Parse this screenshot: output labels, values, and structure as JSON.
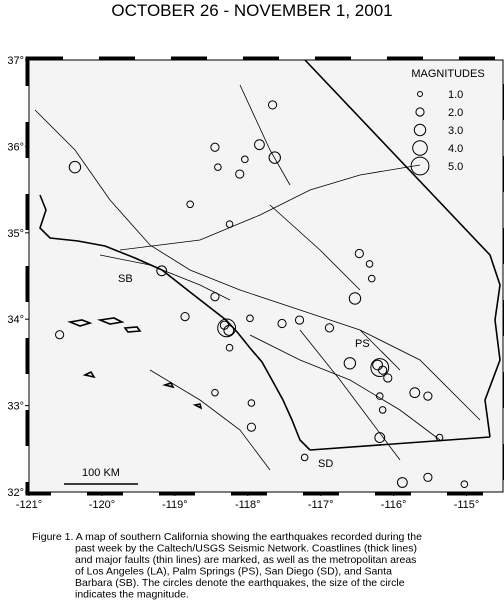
{
  "title": "OCTOBER 26 - NOVEMBER 1, 2001",
  "map": {
    "xlim": [
      -121,
      -114.5
    ],
    "ylim": [
      32,
      37
    ],
    "xticks": [
      {
        "value": -121,
        "label": "-121°"
      },
      {
        "value": -120,
        "label": "-120°"
      },
      {
        "value": -119,
        "label": "-119°"
      },
      {
        "value": -118,
        "label": "-118°"
      },
      {
        "value": -117,
        "label": "-117°"
      },
      {
        "value": -116,
        "label": "-116°"
      },
      {
        "value": -115,
        "label": "-115°"
      }
    ],
    "yticks": [
      {
        "value": 32,
        "label": "32°"
      },
      {
        "value": 33,
        "label": "33°"
      },
      {
        "value": 34,
        "label": "34°"
      },
      {
        "value": 35,
        "label": "35°"
      },
      {
        "value": 36,
        "label": "36°"
      },
      {
        "value": 37,
        "label": "37°"
      }
    ],
    "places": [
      "SB",
      "PS",
      "SD"
    ],
    "scale_bar": "100 KM"
  },
  "legend": {
    "title": "MAGNITUDES",
    "entries": [
      {
        "value": 1,
        "label": "1.0"
      },
      {
        "value": 2,
        "label": "2.0"
      },
      {
        "value": 3,
        "label": "3.0"
      },
      {
        "value": 4,
        "label": "4.0"
      },
      {
        "value": 5,
        "label": "5.0"
      }
    ]
  },
  "quakes": {
    "lon": [
      -120.37,
      -118.45,
      -118.41,
      -118.04,
      -117.84,
      -117.63,
      -118.11,
      -117.66,
      -118.79,
      -118.25,
      -119.18,
      -118.45,
      -118.86,
      -118.29,
      -118.32,
      -118.26,
      -117.97,
      -117.53,
      -117.29,
      -116.88,
      -116.53,
      -116.47,
      -116.33,
      -116.3,
      -116.19,
      -116.22,
      -116.15,
      -116.6,
      -116.08,
      -115.71,
      -115.53,
      -116.19,
      -116.15,
      -117.95,
      -117.95,
      -117.22,
      -116.19,
      -115.88,
      -115.53,
      -115.03,
      -120.58,
      -115.37,
      -118.45,
      -118.25
    ],
    "lat": [
      35.76,
      35.99,
      35.76,
      35.85,
      36.02,
      35.87,
      35.68,
      36.48,
      35.33,
      35.1,
      34.56,
      34.26,
      34.03,
      33.9,
      33.93,
      33.87,
      34.01,
      33.95,
      33.99,
      33.9,
      34.24,
      34.76,
      34.64,
      34.47,
      33.44,
      33.47,
      33.41,
      33.49,
      33.32,
      33.15,
      33.11,
      33.11,
      32.95,
      32.75,
      33.03,
      32.4,
      32.63,
      32.11,
      32.17,
      32.09,
      33.82,
      32.63,
      33.15,
      33.67
    ],
    "magnitude": [
      3.0,
      2.0,
      1.5,
      1.5,
      2.5,
      3.0,
      2.0,
      2.0,
      1.5,
      1.5,
      2.5,
      2.0,
      2.0,
      5.0,
      2.0,
      2.5,
      1.5,
      2.0,
      2.0,
      2.0,
      3.0,
      2.0,
      1.5,
      1.5,
      5.0,
      2.5,
      2.0,
      3.0,
      2.0,
      2.5,
      2.0,
      1.5,
      1.5,
      2.0,
      1.5,
      1.5,
      2.5,
      2.5,
      2.0,
      1.5,
      2.0,
      1.5,
      1.5,
      1.5
    ]
  },
  "caption": [
    "Figure 1. A map of southern California showing the earthquakes recorded during the",
    "past week by the Caltech/USGS Seismic Network.  Coastlines (thick lines)",
    "and major faults (thin lines) are marked, as well as the metropolitan areas",
    "of Los Angeles (LA), Palm Springs (PS), San Diego (SD), and Santa",
    "Barbara (SB).  The circles denote the earthquakes, the size of the circle",
    "indicates the magnitude."
  ]
}
